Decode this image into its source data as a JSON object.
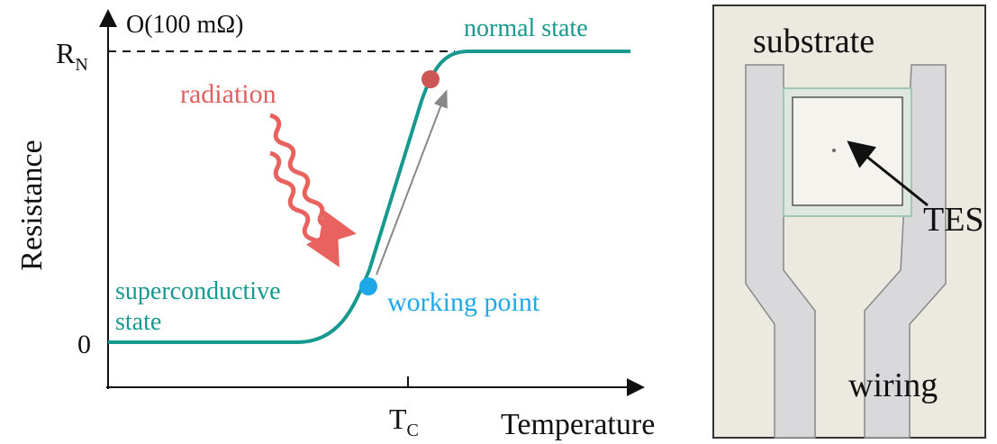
{
  "plot": {
    "y_unit": "O(100 mΩ)",
    "y_label": "Resistance",
    "x_label": "Temperature",
    "y_tick_top": {
      "base": "R",
      "sub": "N"
    },
    "y_tick_bottom": "0",
    "x_tick": {
      "base": "T",
      "sub": "C"
    },
    "annotations": {
      "normal": "normal state",
      "radiation": "radiation",
      "super_line1": "superconductive",
      "super_line2": "state",
      "working": "working point"
    }
  },
  "photo": {
    "labels": {
      "substrate": "substrate",
      "tes": "TES",
      "wiring": "wiring"
    }
  }
}
